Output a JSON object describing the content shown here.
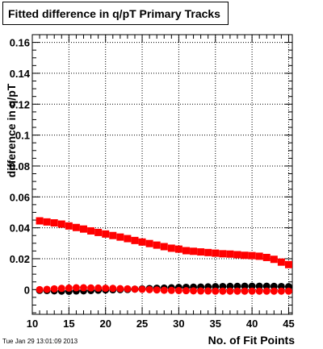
{
  "chart_data": {
    "type": "scatter",
    "title": "Fitted difference in q/pT Primary Tracks",
    "xlabel": "No. of Fit Points",
    "ylabel": "difference in q/pT",
    "xlim": [
      10,
      45.5
    ],
    "ylim": [
      -0.016,
      0.165
    ],
    "xticks": [
      10,
      15,
      20,
      25,
      30,
      35,
      40,
      45
    ],
    "yticks": [
      0,
      0.02,
      0.04,
      0.06,
      0.08,
      0.1,
      0.12,
      0.14,
      0.16
    ],
    "ytick_labels": [
      "0",
      "0.02",
      "0.04",
      "0.06",
      "0.08",
      "0.1",
      "0.12",
      "0.14",
      "0.16"
    ],
    "grid": true,
    "x": [
      11,
      12,
      13,
      14,
      15,
      16,
      17,
      18,
      19,
      20,
      21,
      22,
      23,
      24,
      25,
      26,
      27,
      28,
      29,
      30,
      31,
      32,
      33,
      34,
      35,
      36,
      37,
      38,
      39,
      40,
      41,
      42,
      43,
      44,
      45
    ],
    "series": [
      {
        "marker": "square",
        "color": "#ff0000",
        "values": [
          0.0445,
          0.0438,
          0.0432,
          0.0424,
          0.0412,
          0.0402,
          0.0392,
          0.038,
          0.037,
          0.036,
          0.035,
          0.034,
          0.033,
          0.0318,
          0.0308,
          0.0298,
          0.0288,
          0.0278,
          0.0268,
          0.0262,
          0.0252,
          0.0248,
          0.0244,
          0.024,
          0.0236,
          0.0232,
          0.023,
          0.0226,
          0.0222,
          0.022,
          0.0216,
          0.0208,
          0.0196,
          0.0178,
          0.0162
        ]
      },
      {
        "marker": "circle",
        "color": "#000000",
        "values": [
          -0.0005,
          -0.0006,
          -0.0008,
          -0.001,
          -0.0011,
          -0.0009,
          -0.0008,
          -0.0006,
          -0.0004,
          -0.0002,
          -0.0001,
          0.0,
          0.0001,
          0.0003,
          0.0005,
          0.0007,
          0.0009,
          0.001,
          0.0012,
          0.0014,
          0.0015,
          0.0016,
          0.0017,
          0.0018,
          0.0019,
          0.002,
          0.0021,
          0.0021,
          0.0022,
          0.0022,
          0.0022,
          0.0022,
          0.0021,
          0.002,
          0.0019
        ]
      },
      {
        "marker": "circle",
        "color": "#ff0000",
        "values": [
          0.0,
          0.0002,
          0.0005,
          0.0008,
          0.001,
          0.0012,
          0.0012,
          0.0011,
          0.001,
          0.0009,
          0.0008,
          0.0006,
          0.0005,
          0.0003,
          0.0002,
          0.0,
          -0.0002,
          -0.0004,
          -0.0005,
          -0.0006,
          -0.0007,
          -0.0008,
          -0.0009,
          -0.0009,
          -0.001,
          -0.001,
          -0.001,
          -0.001,
          -0.001,
          -0.001,
          -0.001,
          -0.001,
          -0.001,
          -0.001,
          -0.001
        ]
      }
    ]
  },
  "footer": {
    "timestamp": "Tue Jan 29 13:01:09 2013"
  }
}
